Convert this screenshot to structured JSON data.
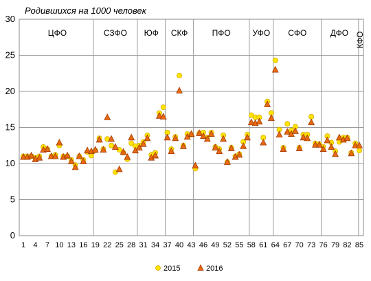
{
  "chart_data": {
    "type": "scatter",
    "title": "Родившихся на 1000 человек",
    "xlabel": "",
    "ylabel": "",
    "ylim": [
      0,
      30
    ],
    "yticks": [
      "0",
      "5",
      "10",
      "15",
      "20",
      "25",
      "30"
    ],
    "xticks": [
      "1",
      "4",
      "7",
      "10",
      "13",
      "16",
      "19",
      "22",
      "25",
      "28",
      "31",
      "34",
      "37",
      "40",
      "43",
      "46",
      "49",
      "52",
      "55",
      "58",
      "61",
      "64",
      "67",
      "70",
      "73",
      "76",
      "79",
      "82",
      "85"
    ],
    "regions": [
      {
        "label": "ЦФО",
        "start": 1,
        "end": 18
      },
      {
        "label": "СЗФО",
        "start": 19,
        "end": 29
      },
      {
        "label": "ЮФ",
        "start": 30,
        "end": 36
      },
      {
        "label": "СКФ",
        "start": 37,
        "end": 43
      },
      {
        "label": "ПФО",
        "start": 44,
        "end": 57
      },
      {
        "label": "УФО",
        "start": 58,
        "end": 63
      },
      {
        "label": "СФО",
        "start": 64,
        "end": 75
      },
      {
        "label": "ДФО",
        "start": 76,
        "end": 84
      },
      {
        "label": "КФО",
        "start": 84,
        "end": 85
      }
    ],
    "legend_position": "bottom",
    "grid": true,
    "series": [
      {
        "name": "2015",
        "marker": "circle",
        "color": "#FFE600",
        "stroke": "#D8A800",
        "values": [
          11.0,
          11.0,
          11.0,
          10.8,
          11.0,
          12.3,
          12.0,
          11.0,
          11.2,
          12.5,
          11.0,
          11.0,
          10.5,
          9.8,
          11.0,
          10.5,
          11.6,
          11.1,
          11.8,
          13.5,
          12.0,
          13.4,
          12.5,
          8.8,
          11.9,
          11.5,
          10.6,
          12.8,
          12.4,
          12.5,
          13.0,
          13.9,
          11.2,
          11.5,
          17.0,
          17.8,
          14.3,
          12.0,
          13.7,
          22.2,
          12.5,
          14.1,
          14.0,
          9.3,
          14.2,
          14.3,
          13.6,
          14.3,
          12.3,
          12.0,
          13.9,
          10.2,
          12.2,
          11.0,
          11.3,
          13.0,
          14.0,
          16.7,
          16.4,
          16.4,
          13.6,
          18.6,
          17.0,
          24.3,
          14.7,
          12.2,
          15.5,
          14.6,
          15.1,
          12.2,
          14.0,
          14.0,
          16.5,
          12.8,
          12.7,
          12.3,
          13.8,
          12.9,
          11.7,
          13.0,
          13.6,
          13.6,
          11.5,
          12.8,
          11.8
        ]
      },
      {
        "name": "2016",
        "marker": "triangle",
        "color": "#E86A10",
        "stroke": "#A03800",
        "values": [
          10.9,
          10.9,
          11.1,
          10.6,
          10.8,
          11.9,
          12.0,
          11.0,
          11.0,
          12.9,
          10.9,
          11.1,
          10.3,
          9.5,
          11.0,
          10.3,
          11.8,
          11.7,
          11.9,
          13.3,
          11.9,
          16.4,
          13.4,
          12.3,
          9.2,
          11.6,
          10.9,
          13.6,
          11.8,
          12.2,
          12.7,
          13.5,
          10.8,
          11.1,
          16.6,
          16.5,
          13.6,
          11.7,
          13.5,
          20.1,
          12.4,
          13.7,
          14.1,
          9.7,
          14.2,
          13.8,
          13.4,
          14.1,
          12.2,
          11.7,
          13.4,
          10.2,
          12.1,
          10.9,
          11.2,
          12.4,
          13.6,
          15.7,
          15.6,
          15.8,
          12.9,
          18.2,
          16.3,
          23.0,
          14.0,
          12.0,
          14.4,
          14.1,
          14.5,
          12.1,
          13.6,
          13.5,
          15.7,
          12.6,
          12.6,
          12.0,
          13.2,
          12.3,
          11.3,
          13.6,
          13.3,
          13.5,
          11.4,
          12.5,
          12.5
        ]
      }
    ]
  }
}
